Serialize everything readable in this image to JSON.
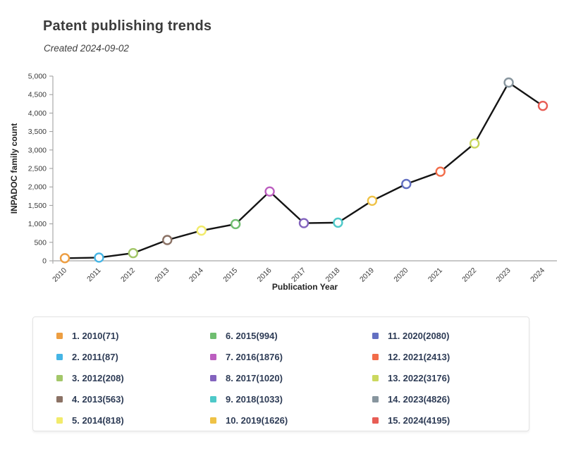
{
  "header": {
    "title": "Patent publishing trends",
    "subtitle": "Created 2024-09-02"
  },
  "chart_data": {
    "type": "line",
    "x": [
      2010,
      2011,
      2012,
      2013,
      2014,
      2015,
      2016,
      2017,
      2018,
      2019,
      2020,
      2021,
      2022,
      2023,
      2024
    ],
    "values": [
      71,
      87,
      208,
      563,
      818,
      994,
      1876,
      1020,
      1033,
      1626,
      2080,
      2413,
      3176,
      4826,
      4195
    ],
    "title": "Patent publishing trends",
    "xlabel": "Publication Year",
    "ylabel": "INPADOC family count",
    "ylim": [
      0,
      5000
    ],
    "ytick_step": 500,
    "grid": false,
    "legend_position": "bottom",
    "line_color": "#141414",
    "axis_color": "#9a9a9a",
    "marker_colors": [
      "#ED9E42",
      "#45B5E5",
      "#A3C769",
      "#8B7265",
      "#F2EB6B",
      "#6FBE70",
      "#BC5EC0",
      "#8363BE",
      "#4EC9C9",
      "#EFC246",
      "#6370C2",
      "#F26C49",
      "#CBD85F",
      "#87959E",
      "#E85D55"
    ],
    "legend": [
      {
        "label": "1. 2010(71)",
        "color": "#ED9E42"
      },
      {
        "label": "2. 2011(87)",
        "color": "#45B5E5"
      },
      {
        "label": "3. 2012(208)",
        "color": "#A3C769"
      },
      {
        "label": "4. 2013(563)",
        "color": "#8B7265"
      },
      {
        "label": "5. 2014(818)",
        "color": "#F2EB6B"
      },
      {
        "label": "6. 2015(994)",
        "color": "#6FBE70"
      },
      {
        "label": "7. 2016(1876)",
        "color": "#BC5EC0"
      },
      {
        "label": "8. 2017(1020)",
        "color": "#8363BE"
      },
      {
        "label": "9. 2018(1033)",
        "color": "#4EC9C9"
      },
      {
        "label": "10. 2019(1626)",
        "color": "#EFC246"
      },
      {
        "label": "11. 2020(2080)",
        "color": "#6370C2"
      },
      {
        "label": "12. 2021(2413)",
        "color": "#F26C49"
      },
      {
        "label": "13. 2022(3176)",
        "color": "#CBD85F"
      },
      {
        "label": "14. 2023(4826)",
        "color": "#87959E"
      },
      {
        "label": "15. 2024(4195)",
        "color": "#E85D55"
      }
    ]
  }
}
